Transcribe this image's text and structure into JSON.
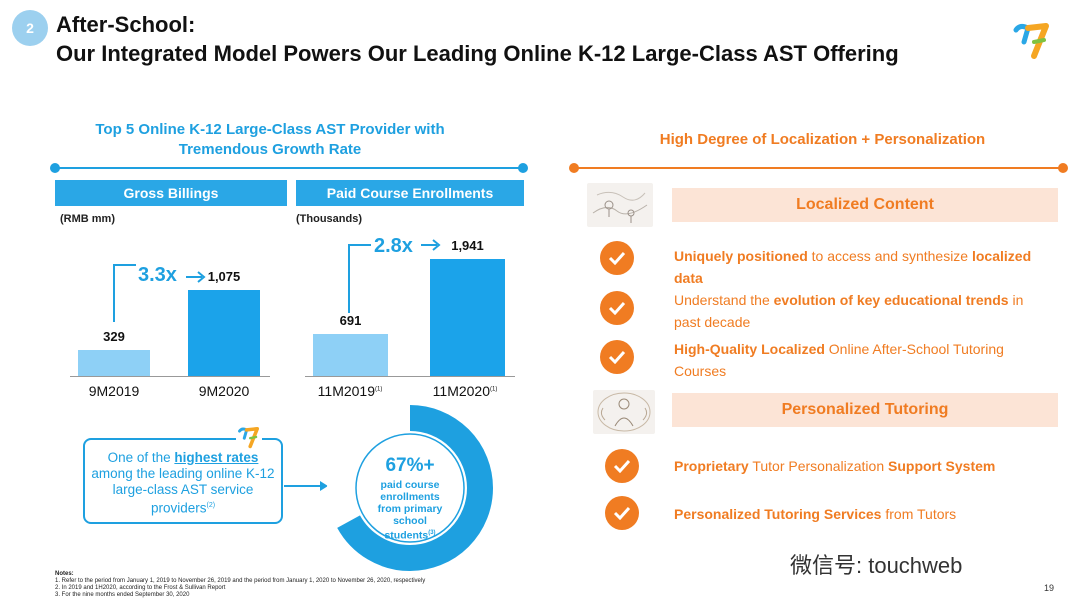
{
  "slide_number": "2",
  "title": {
    "line1": "After-School:",
    "line2": "Our Integrated Model Powers Our Leading Online K-12 Large-Class AST Offering"
  },
  "left": {
    "heading_line1": "Top 5 Online K-12 Large-Class AST Provider with",
    "heading_line2": "Tremendous Growth Rate"
  },
  "chart_data": [
    {
      "type": "bar",
      "title": "Gross Billings",
      "ylabel": "(RMB mm)",
      "categories": [
        "9M2019",
        "9M2020"
      ],
      "values": [
        329,
        1075
      ],
      "value_labels": [
        "329",
        "1,075"
      ],
      "growth_label": "3.3x",
      "ylim": [
        0,
        1100
      ]
    },
    {
      "type": "bar",
      "title": "Paid Course Enrollments",
      "ylabel": "(Thousands)",
      "categories": [
        "11M2019",
        "11M2020"
      ],
      "category_notes": [
        "(1)",
        "(1)"
      ],
      "values": [
        691,
        1941
      ],
      "value_labels": [
        "691",
        "1,941"
      ],
      "growth_label": "2.8x",
      "ylim": [
        0,
        2000
      ]
    },
    {
      "type": "pie",
      "values": [
        67,
        33
      ],
      "center_big": "67%+",
      "center_lines": [
        "paid course",
        "enrollments",
        "from primary",
        "school",
        "students"
      ],
      "center_note": "(3)"
    }
  ],
  "callout": {
    "pre": "One of the ",
    "bold": "highest rates",
    "post": " among the leading online K-12 large-class AST service providers",
    "note": "(2)"
  },
  "notes": {
    "heading": "Notes:",
    "items": [
      "1.  Refer to the period from January 1, 2019 to November 26, 2019 and the period from January 1, 2020 to November 26, 2020, respectively",
      "2.  In 2019 and 1H2020, according to the Frost & Sullivan Report",
      "3.  For the nine months ended September 30, 2020"
    ]
  },
  "right": {
    "heading": "High Degree of Localization + Personalization",
    "section1": {
      "title": "Localized Content",
      "bullets": [
        {
          "b1": "Uniquely positioned",
          "t1": " to access and synthesize ",
          "b2": "localized data",
          "t2": ""
        },
        {
          "b1": "",
          "t1": "Understand the ",
          "b2": "evolution of key educational trends",
          "t2": " in past decade"
        },
        {
          "b1": "High-Quality Localized",
          "t1": " Online After-School Tutoring Courses",
          "b2": "",
          "t2": ""
        }
      ]
    },
    "section2": {
      "title": "Personalized Tutoring",
      "bullets": [
        {
          "b1": "Proprietary",
          "t1": " Tutor Personalization ",
          "b2": "Support System",
          "t2": ""
        },
        {
          "b1": "Personalized Tutoring Services",
          "t1": " from Tutors",
          "b2": "",
          "t2": ""
        }
      ]
    }
  },
  "watermark": "微信号: touchweb",
  "page_number": "19",
  "colors": {
    "blue": "#1ea0e0",
    "light_blue": "#8ed0f6",
    "orange": "#f07c22",
    "peach": "#fce4d6"
  }
}
